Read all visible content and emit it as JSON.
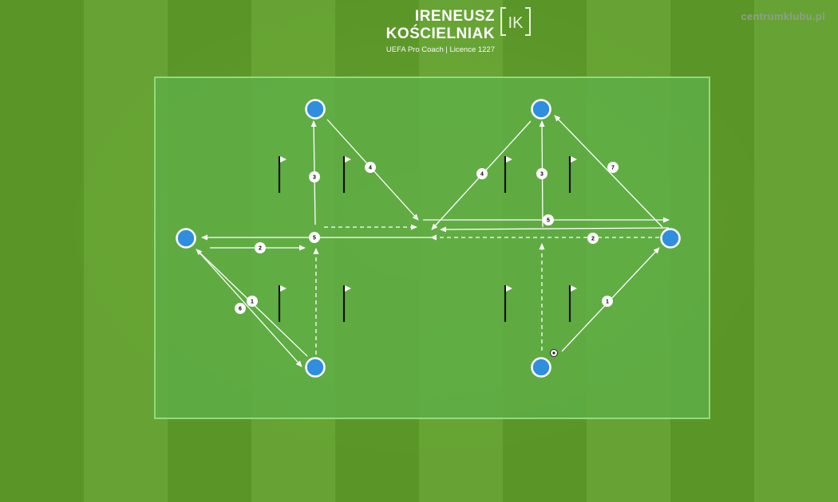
{
  "header": {
    "name": "IRENEUSZ KOŚCIELNIAK",
    "subtitle": "UEFA Pro Coach  |  Licence 1227",
    "logo_letters": "IK",
    "site": "centrumklubu.pl"
  },
  "colors": {
    "grass_dark": "#5a9528",
    "grass_light": "#66a334",
    "pitch_area": "#5fae46",
    "player": "#2f8fde",
    "line": "#ffffff",
    "flag_pole": "#111111"
  },
  "diagram": {
    "players": [
      {
        "id": "left-top"
      },
      {
        "id": "left-wide"
      },
      {
        "id": "left-bottom"
      },
      {
        "id": "right-top"
      },
      {
        "id": "right-wide"
      },
      {
        "id": "right-bottom"
      }
    ],
    "labels": [
      {
        "id": "l1",
        "text": "1"
      },
      {
        "id": "l6",
        "text": "6"
      },
      {
        "id": "l2",
        "text": "2"
      },
      {
        "id": "l5",
        "text": "5"
      },
      {
        "id": "l3",
        "text": "3"
      },
      {
        "id": "l4",
        "text": "4"
      },
      {
        "id": "r4",
        "text": "4"
      },
      {
        "id": "r3",
        "text": "3"
      },
      {
        "id": "r7",
        "text": "7"
      },
      {
        "id": "r5",
        "text": "5"
      },
      {
        "id": "r2",
        "text": "2"
      },
      {
        "id": "r1",
        "text": "1"
      }
    ],
    "flag_count": 8,
    "ball": "football-icon"
  }
}
